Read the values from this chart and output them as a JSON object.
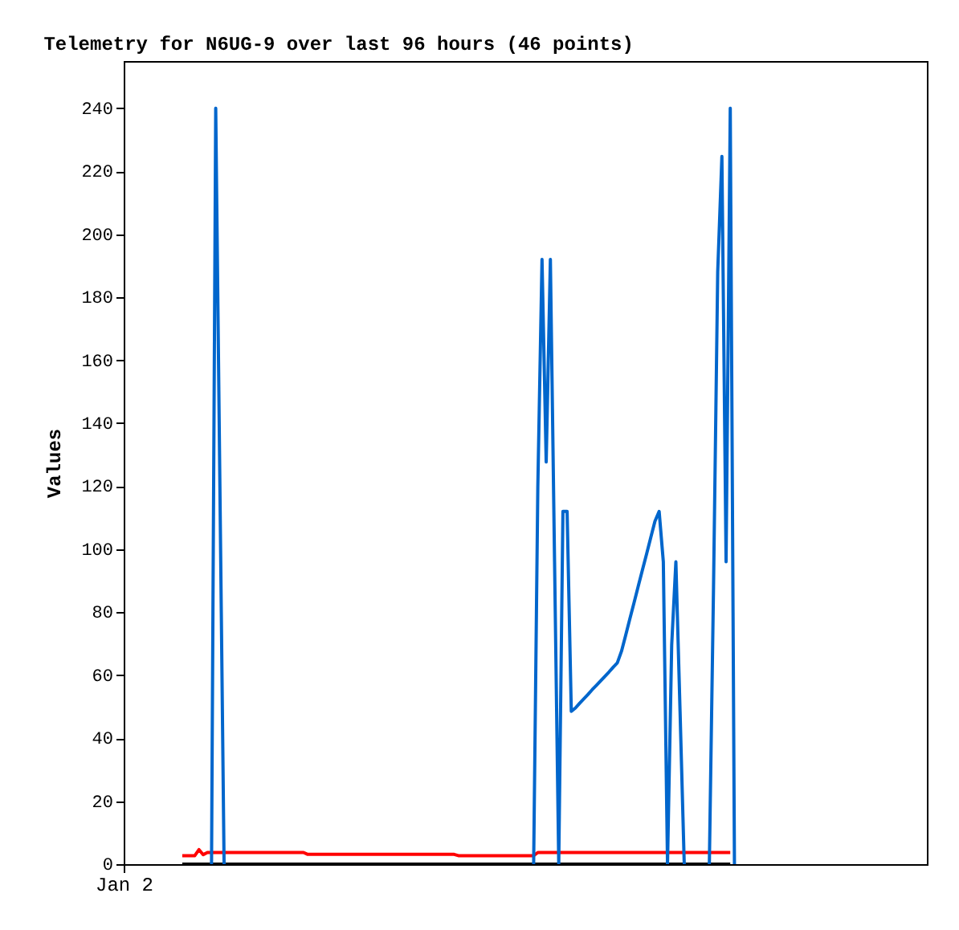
{
  "chart_data": {
    "type": "line",
    "title": "Telemetry for N6UG-9 over last 96 hours (46 points)",
    "ylabel": "Values",
    "categories": [
      "Jan 2",
      null,
      null,
      null,
      null,
      null,
      null,
      null,
      null,
      null,
      null,
      null,
      null,
      null,
      null,
      null,
      null,
      null,
      null,
      null,
      null,
      null,
      null,
      null,
      null,
      null,
      null,
      null,
      null,
      null,
      null,
      null,
      null,
      null,
      null,
      null,
      null,
      null,
      null,
      null,
      null,
      null,
      null,
      null,
      null,
      null,
      null,
      null,
      null,
      null,
      null,
      null,
      null,
      null,
      null,
      null,
      null,
      null,
      null,
      null,
      null,
      null,
      null,
      null,
      null,
      null,
      null,
      null,
      null,
      null,
      null,
      null,
      null,
      null,
      null,
      null,
      null,
      null,
      null,
      null,
      null,
      null,
      null,
      null,
      null,
      null,
      null,
      null,
      null,
      null,
      null,
      null,
      null,
      null,
      null,
      null,
      null,
      null,
      null,
      null,
      null,
      null,
      null,
      null,
      null,
      null,
      null,
      null,
      null,
      null,
      null,
      null,
      null,
      null,
      null,
      null,
      null,
      null,
      null,
      null,
      null,
      null,
      null,
      null,
      null,
      null,
      null,
      null,
      null,
      null,
      null,
      null,
      null,
      null,
      null,
      null,
      null,
      null,
      null,
      null,
      null,
      null,
      null,
      null,
      null,
      null,
      null,
      null,
      null,
      null,
      null,
      null,
      null,
      null,
      null,
      null,
      null,
      null,
      null,
      null,
      null,
      null,
      null,
      null,
      null,
      null,
      null,
      null,
      null,
      null,
      null,
      null,
      null,
      null,
      null,
      null,
      null,
      null,
      null,
      null,
      null,
      null,
      null,
      null,
      null,
      null,
      null,
      null,
      null,
      null,
      null,
      null,
      null
    ],
    "ylim": [
      0,
      255
    ],
    "yticks": [
      0,
      20,
      40,
      60,
      80,
      100,
      120,
      140,
      160,
      180,
      200,
      220,
      240
    ],
    "grid": false,
    "series": [
      {
        "color": "#000000",
        "values": [
          null,
          null,
          null,
          null,
          null,
          null,
          null,
          null,
          null,
          null,
          null,
          null,
          null,
          null,
          0,
          0,
          0,
          0,
          0,
          0,
          0,
          0,
          0,
          0,
          0,
          0,
          0,
          0,
          0,
          0,
          0,
          0,
          0,
          0,
          0,
          0,
          0,
          0,
          0,
          0,
          0,
          0,
          0,
          0,
          0,
          0,
          0,
          0,
          0,
          0,
          0,
          0,
          0,
          0,
          0,
          0,
          0,
          0,
          0,
          0,
          0,
          0,
          0,
          0,
          0,
          0,
          0,
          0,
          0,
          0,
          0,
          0,
          0,
          0,
          0,
          0,
          0,
          0,
          0,
          0,
          0,
          0,
          0,
          0,
          0,
          0,
          0,
          0,
          0,
          0,
          0,
          0,
          0,
          0,
          0,
          0,
          0,
          0,
          0,
          0,
          0,
          0,
          0,
          0,
          0,
          0,
          0,
          0,
          0,
          0,
          0,
          0,
          0,
          0,
          0,
          0,
          0,
          0,
          0,
          0,
          0,
          0,
          0,
          0,
          0,
          0,
          0,
          0,
          0,
          0,
          0,
          0,
          0,
          0,
          0,
          0,
          0,
          0,
          0,
          0,
          0,
          0,
          0,
          0,
          0,
          0,
          null,
          null,
          null,
          null,
          null,
          null,
          null,
          null,
          null,
          null,
          null,
          null,
          null,
          null,
          null,
          null,
          null,
          null,
          null,
          null,
          null,
          null,
          null,
          null,
          null,
          null,
          null,
          null,
          null,
          null,
          null,
          null,
          null,
          null,
          null,
          null,
          null,
          null,
          null,
          null,
          null,
          null,
          null,
          null,
          null,
          null,
          null
        ]
      },
      {
        "color": "#ff0000",
        "values": [
          null,
          null,
          null,
          null,
          null,
          null,
          null,
          null,
          null,
          null,
          null,
          null,
          null,
          null,
          2.7,
          2.7,
          2.7,
          2.7,
          4.6,
          3.0,
          3.7,
          3.7,
          3.7,
          3.7,
          3.7,
          3.7,
          3.7,
          3.7,
          3.7,
          3.7,
          3.7,
          3.7,
          3.7,
          3.7,
          3.7,
          3.7,
          3.7,
          3.7,
          3.7,
          3.7,
          3.7,
          3.7,
          3.7,
          3.7,
          3.1,
          3.1,
          3.1,
          3.1,
          3.1,
          3.1,
          3.1,
          3.1,
          3.1,
          3.1,
          3.1,
          3.1,
          3.1,
          3.1,
          3.1,
          3.1,
          3.1,
          3.1,
          3.1,
          3.1,
          3.1,
          3.1,
          3.1,
          3.1,
          3.1,
          3.1,
          3.1,
          3.1,
          3.1,
          3.1,
          3.1,
          3.1,
          3.1,
          3.1,
          3.1,
          3.1,
          2.7,
          2.7,
          2.7,
          2.7,
          2.7,
          2.7,
          2.7,
          2.7,
          2.7,
          2.7,
          2.7,
          2.7,
          2.7,
          2.7,
          2.7,
          2.7,
          2.7,
          2.7,
          2.7,
          3.7,
          3.7,
          3.7,
          3.7,
          3.7,
          3.7,
          3.7,
          3.7,
          3.7,
          3.7,
          3.7,
          3.7,
          3.7,
          3.7,
          3.7,
          3.7,
          3.7,
          3.7,
          3.7,
          3.7,
          3.7,
          3.7,
          3.7,
          3.7,
          3.7,
          3.7,
          3.7,
          3.7,
          3.7,
          3.7,
          3.7,
          3.7,
          3.7,
          3.7,
          3.7,
          3.7,
          3.7,
          3.7,
          3.7,
          3.7,
          3.7,
          3.7,
          3.7,
          3.7,
          3.7,
          3.7,
          3.7,
          null,
          null,
          null,
          null,
          null,
          null,
          null,
          null,
          null,
          null,
          null,
          null,
          null,
          null,
          null,
          null,
          null,
          null,
          null,
          null,
          null,
          null,
          null,
          null,
          null,
          null,
          null,
          null,
          null,
          null,
          null,
          null,
          null,
          null,
          null,
          null,
          null,
          null,
          null,
          null,
          null,
          null,
          null,
          null,
          null,
          null,
          null
        ]
      },
      {
        "color": "#0066cc",
        "values": [
          null,
          null,
          null,
          null,
          null,
          null,
          null,
          null,
          null,
          null,
          null,
          null,
          null,
          null,
          null,
          null,
          null,
          null,
          null,
          null,
          null,
          0,
          240,
          120,
          0,
          null,
          null,
          null,
          null,
          null,
          null,
          null,
          null,
          null,
          null,
          null,
          null,
          null,
          null,
          null,
          null,
          null,
          null,
          null,
          null,
          null,
          null,
          null,
          null,
          null,
          null,
          null,
          null,
          null,
          null,
          null,
          null,
          null,
          null,
          null,
          null,
          null,
          null,
          null,
          null,
          null,
          null,
          null,
          null,
          null,
          null,
          null,
          null,
          null,
          null,
          null,
          null,
          null,
          null,
          null,
          null,
          null,
          null,
          null,
          null,
          null,
          null,
          null,
          null,
          null,
          null,
          null,
          null,
          null,
          null,
          null,
          null,
          null,
          0,
          120,
          192,
          127.7,
          192,
          96,
          0,
          112,
          112,
          48.5,
          49.6,
          51.1,
          52.5,
          53.9,
          55.4,
          56.8,
          58.2,
          59.6,
          61.0,
          62.5,
          63.9,
          67.6,
          72.7,
          77.9,
          83.0,
          88.2,
          93.4,
          98.5,
          103.7,
          108.9,
          112,
          96,
          0,
          69.6,
          96,
          48.5,
          0,
          null,
          null,
          null,
          null,
          null,
          0,
          88,
          188,
          224.7,
          96,
          240,
          0,
          null,
          null,
          null,
          null,
          null,
          null,
          null,
          null,
          null,
          null,
          null,
          null,
          null,
          null,
          null,
          null,
          null,
          null,
          null,
          null,
          null,
          null,
          null,
          null,
          null,
          null,
          null,
          null,
          null,
          null,
          null,
          null,
          null,
          null,
          null,
          null,
          null,
          null,
          null,
          null,
          null,
          null,
          null,
          null,
          null,
          null
        ]
      }
    ]
  }
}
